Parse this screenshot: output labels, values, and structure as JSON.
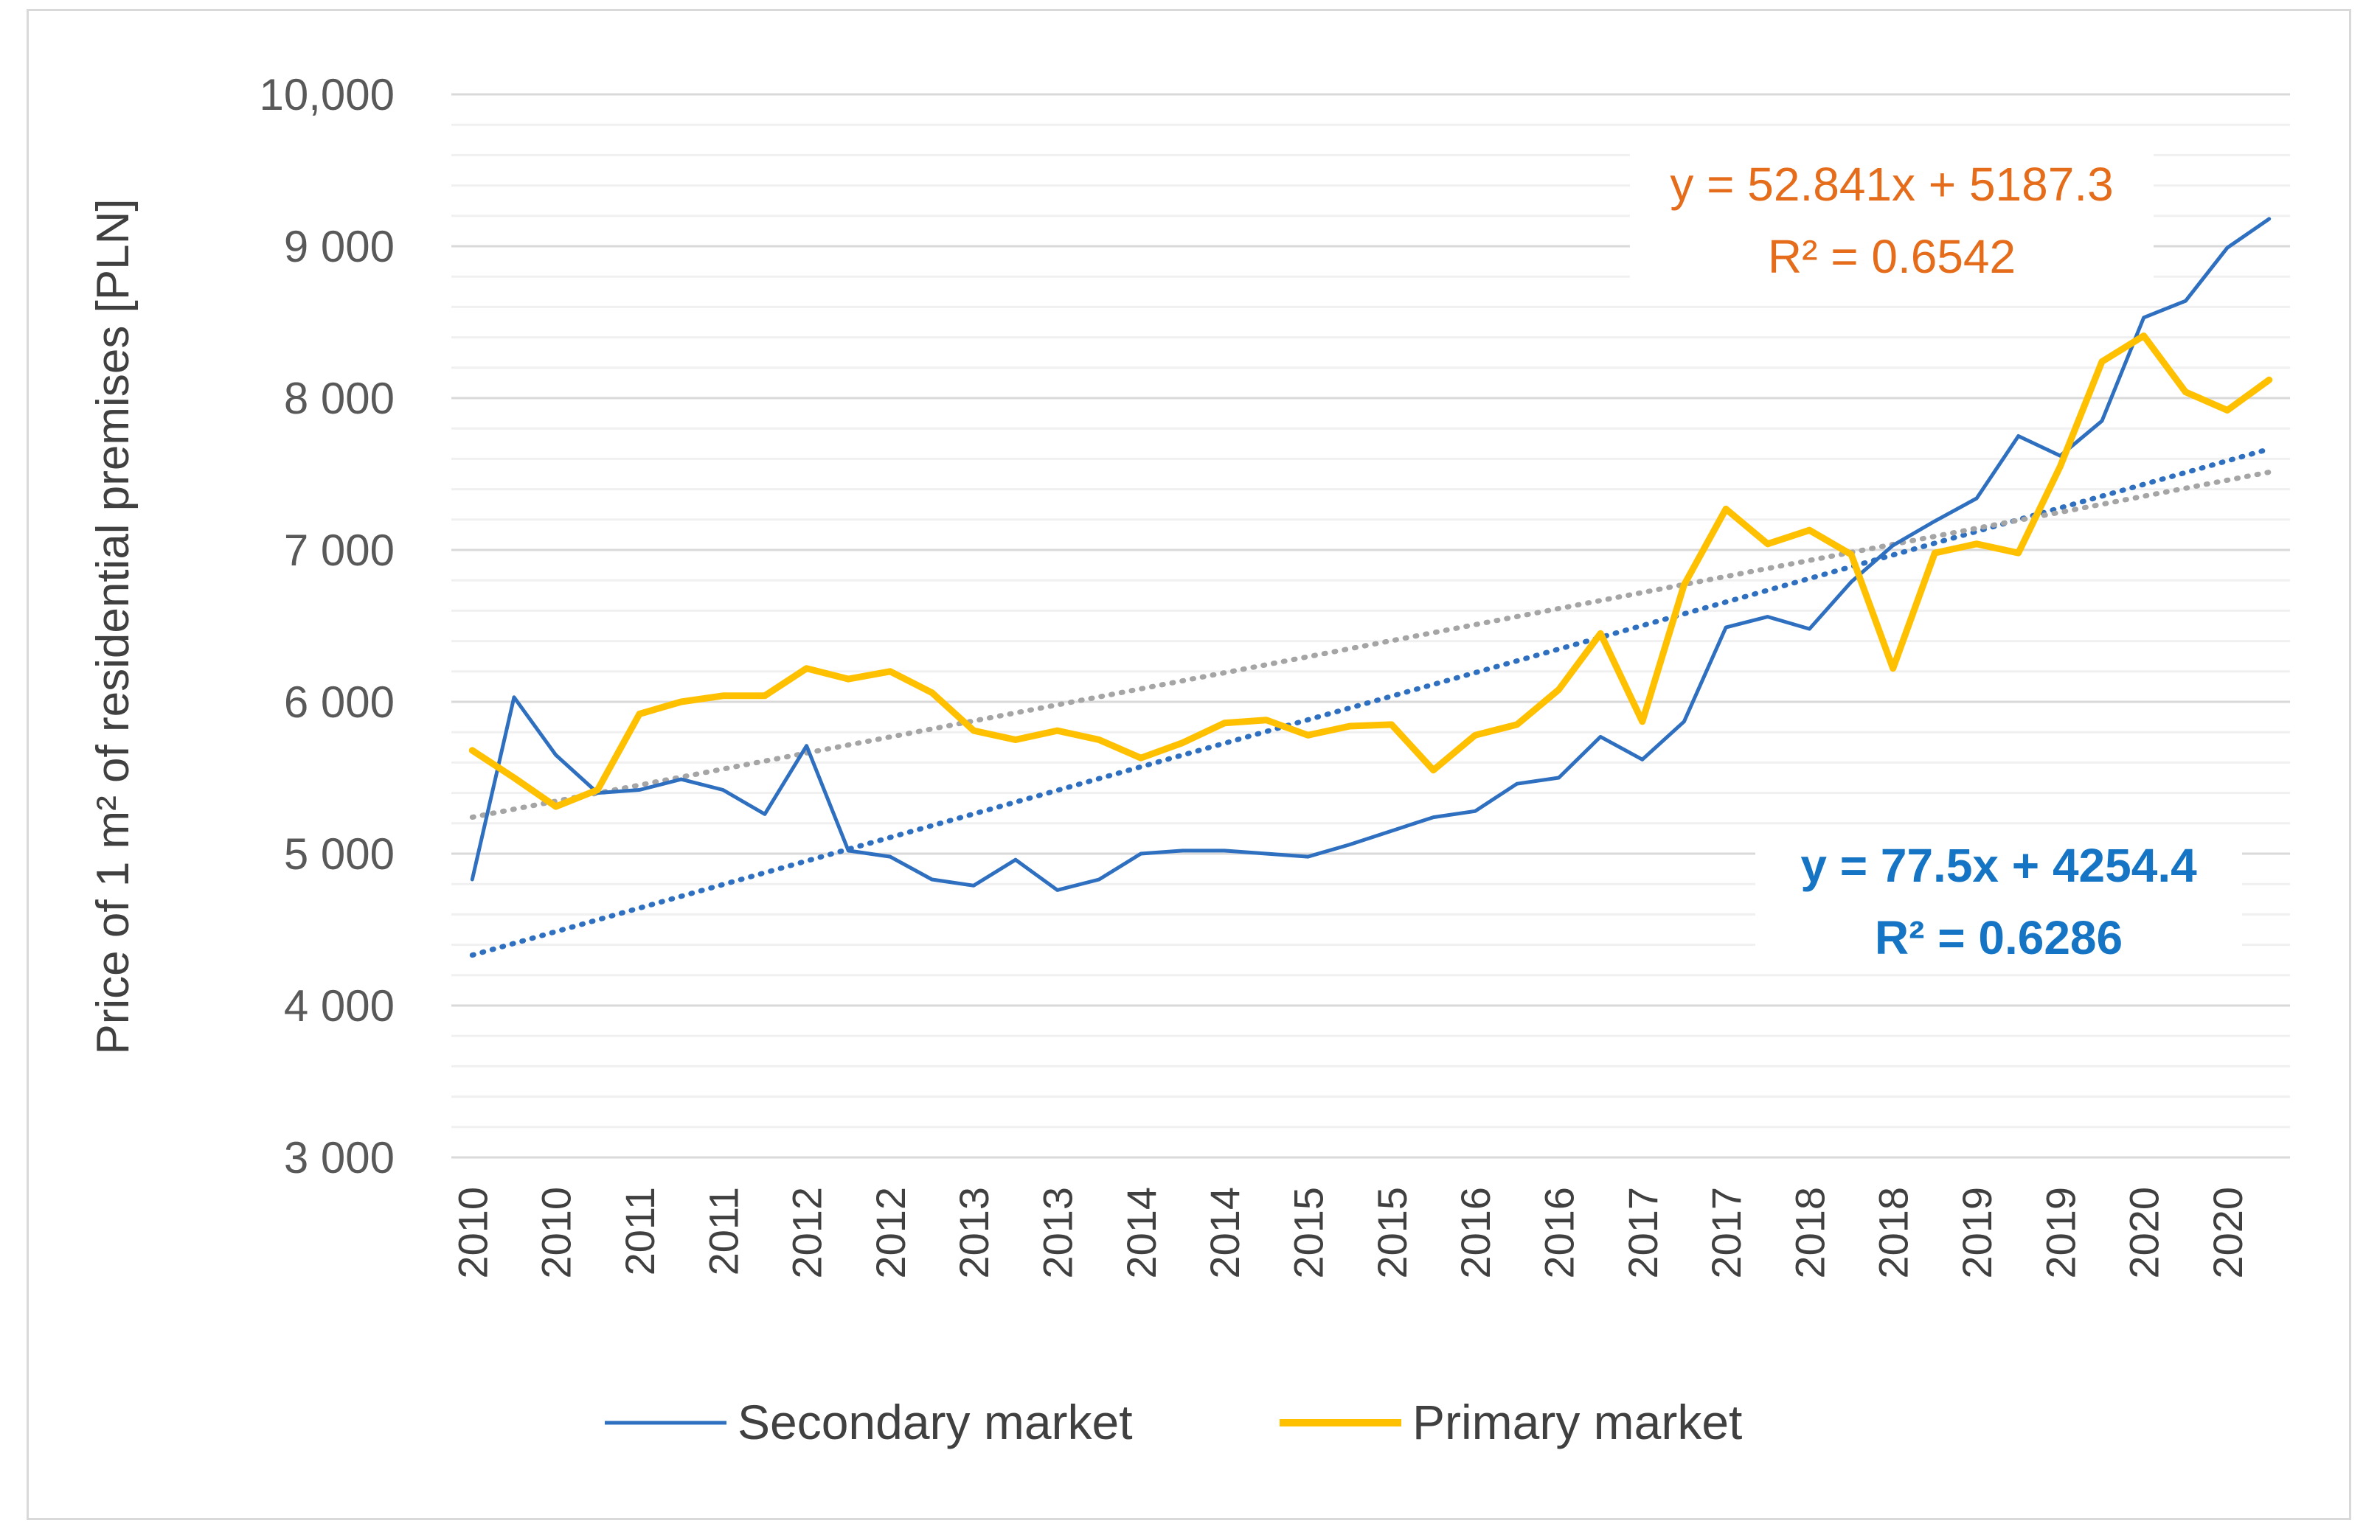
{
  "chart_data": {
    "type": "line",
    "title": "",
    "xlabel": "",
    "ylabel": "Price of 1 m² of residential premises [PLN]",
    "ylim": [
      3000,
      10000
    ],
    "yticks": [
      "3 000",
      "4 000",
      "5 000",
      "6 000",
      "7 000",
      "8 000",
      "9 000",
      "10,000"
    ],
    "ytick_values": [
      3000,
      4000,
      5000,
      6000,
      7000,
      8000,
      9000,
      10000
    ],
    "minor_gridline_step": 200,
    "grid": true,
    "categories": [
      "2010",
      "2010",
      "2010",
      "2010",
      "2011",
      "2011",
      "2011",
      "2011",
      "2012",
      "2012",
      "2012",
      "2012",
      "2013",
      "2013",
      "2013",
      "2013",
      "2014",
      "2014",
      "2014",
      "2014",
      "2015",
      "2015",
      "2015",
      "2015",
      "2016",
      "2016",
      "2016",
      "2016",
      "2017",
      "2017",
      "2017",
      "2017",
      "2018",
      "2018",
      "2018",
      "2018",
      "2019",
      "2019",
      "2019",
      "2019",
      "2020",
      "2020",
      "2020",
      "2020"
    ],
    "x_tick_labels": [
      "2010",
      "2010",
      "2011",
      "2011",
      "2012",
      "2012",
      "2013",
      "2013",
      "2014",
      "2014",
      "2015",
      "2015",
      "2016",
      "2016",
      "2017",
      "2017",
      "2018",
      "2018",
      "2019",
      "2019",
      "2020",
      "2020"
    ],
    "series": [
      {
        "name": "Secondary market",
        "color": "#2e6fc0",
        "values": [
          4830,
          6030,
          5650,
          5400,
          5420,
          5490,
          5420,
          5260,
          5710,
          5020,
          4980,
          4830,
          4790,
          4960,
          4760,
          4830,
          5000,
          5020,
          5020,
          5000,
          4980,
          5060,
          5150,
          5240,
          5280,
          5460,
          5500,
          5770,
          5620,
          5870,
          6490,
          6560,
          6480,
          6790,
          7030,
          7190,
          7340,
          7750,
          7620,
          7850,
          8530,
          8640,
          8990,
          9180
        ]
      },
      {
        "name": "Primary market",
        "color": "#ffc000",
        "values": [
          5680,
          5500,
          5310,
          5420,
          5920,
          6000,
          6040,
          6040,
          6220,
          6150,
          6200,
          6060,
          5810,
          5750,
          5810,
          5750,
          5630,
          5730,
          5860,
          5880,
          5780,
          5840,
          5850,
          5550,
          5780,
          5850,
          6080,
          6450,
          5870,
          6770,
          7270,
          7040,
          7130,
          6970,
          6220,
          6980,
          7040,
          6980,
          7550,
          8240,
          8410,
          8040,
          7920,
          8120
        ]
      }
    ],
    "trendlines": [
      {
        "series": "Secondary market",
        "slope": 77.5,
        "intercept": 4254.4,
        "color": "#2e6fc0",
        "equation": "y = 77.5x + 4254.4",
        "r2": "R² = 0.6286"
      },
      {
        "series": "Primary market",
        "slope": 52.841,
        "intercept": 5187.3,
        "color": "#a5a5a5",
        "equation": "y = 52.841x + 5187.3",
        "r2": "R² = 0.6542"
      }
    ],
    "legend": {
      "placement": "bottom"
    }
  }
}
